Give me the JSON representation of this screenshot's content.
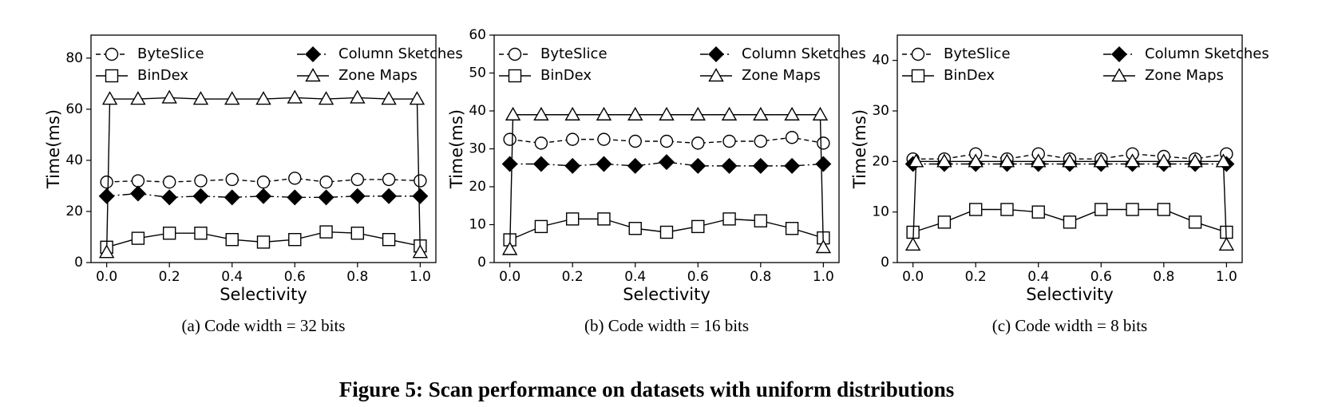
{
  "caption": "Figure 5: Scan performance on datasets with uniform distributions",
  "chart_data": [
    {
      "type": "line",
      "subtitle": "(a)  Code width = 32 bits",
      "x_label": "Selectivity",
      "y_label": "Time(ms)",
      "xlim": [
        -0.05,
        1.05
      ],
      "xticks": [
        {
          "value": 0,
          "label": "0.0"
        },
        0.2,
        0.4,
        0.6,
        0.8,
        {
          "value": 1,
          "label": "1.0"
        }
      ],
      "ylim": [
        0,
        89
      ],
      "yticks": [
        0,
        20,
        40,
        60,
        80
      ],
      "series": [
        {
          "name": "ByteSlice",
          "color": "#000000",
          "marker": "circle",
          "linestyle": "dashed",
          "x": [
            0,
            0.1,
            0.2,
            0.3,
            0.4,
            0.5,
            0.6,
            0.7,
            0.8,
            0.9,
            1
          ],
          "values": [
            31.5,
            32,
            31.5,
            32,
            32.5,
            31.5,
            33,
            31.5,
            32.5,
            32.5,
            32
          ]
        },
        {
          "name": "Column Sketches",
          "color": "#000000",
          "marker": "diamond",
          "linestyle": "dashdot",
          "x": [
            0,
            0.1,
            0.2,
            0.3,
            0.4,
            0.5,
            0.6,
            0.7,
            0.8,
            0.9,
            1
          ],
          "values": [
            26,
            27,
            25.5,
            26,
            25.5,
            26,
            25.5,
            25.5,
            26,
            26,
            26
          ]
        },
        {
          "name": "BinDex",
          "color": "#000000",
          "marker": "square",
          "linestyle": "solid",
          "x": [
            0,
            0.1,
            0.2,
            0.3,
            0.4,
            0.5,
            0.6,
            0.7,
            0.8,
            0.9,
            1
          ],
          "values": [
            6,
            9.5,
            11.5,
            11.5,
            9,
            8,
            9,
            12,
            11.5,
            9,
            6.5
          ]
        },
        {
          "name": "Zone Maps",
          "color": "#000000",
          "marker": "triangle",
          "linestyle": "solid",
          "x": [
            0,
            0.01,
            0.1,
            0.2,
            0.3,
            0.4,
            0.5,
            0.6,
            0.7,
            0.8,
            0.9,
            0.99,
            1
          ],
          "values": [
            4,
            64,
            64,
            64.5,
            64,
            64,
            64,
            64.5,
            64,
            64.5,
            64,
            64,
            4
          ]
        }
      ]
    },
    {
      "type": "line",
      "subtitle": "(b)  Code width = 16 bits",
      "x_label": "Selectivity",
      "y_label": "Time(ms)",
      "xlim": [
        -0.05,
        1.05
      ],
      "xticks": [
        {
          "value": 0,
          "label": "0.0"
        },
        0.2,
        0.4,
        0.6,
        0.8,
        {
          "value": 1,
          "label": "1.0"
        }
      ],
      "ylim": [
        0,
        60
      ],
      "yticks": [
        0,
        10,
        20,
        30,
        40,
        50,
        60
      ],
      "series": [
        {
          "name": "ByteSlice",
          "color": "#000000",
          "marker": "circle",
          "linestyle": "dashed",
          "x": [
            0,
            0.1,
            0.2,
            0.3,
            0.4,
            0.5,
            0.6,
            0.7,
            0.8,
            0.9,
            1
          ],
          "values": [
            32.5,
            31.5,
            32.5,
            32.5,
            32,
            32,
            31.5,
            32,
            32,
            33,
            31.5
          ]
        },
        {
          "name": "Column Sketches",
          "color": "#000000",
          "marker": "diamond",
          "linestyle": "dashdot",
          "x": [
            0,
            0.1,
            0.2,
            0.3,
            0.4,
            0.5,
            0.6,
            0.7,
            0.8,
            0.9,
            1
          ],
          "values": [
            26,
            26,
            25.5,
            26,
            25.5,
            26.5,
            25.5,
            25.5,
            25.5,
            25.5,
            26
          ]
        },
        {
          "name": "BinDex",
          "color": "#000000",
          "marker": "square",
          "linestyle": "solid",
          "x": [
            0,
            0.1,
            0.2,
            0.3,
            0.4,
            0.5,
            0.6,
            0.7,
            0.8,
            0.9,
            1
          ],
          "values": [
            6,
            9.5,
            11.5,
            11.5,
            9,
            8,
            9.5,
            11.5,
            11,
            9,
            6.5
          ]
        },
        {
          "name": "Zone Maps",
          "color": "#000000",
          "marker": "triangle",
          "linestyle": "solid",
          "x": [
            0,
            0.01,
            0.1,
            0.2,
            0.3,
            0.4,
            0.5,
            0.6,
            0.7,
            0.8,
            0.9,
            0.99,
            1
          ],
          "values": [
            3.5,
            39,
            39,
            39,
            39,
            39,
            39,
            39,
            39,
            39,
            39,
            39,
            4
          ]
        }
      ]
    },
    {
      "type": "line",
      "subtitle": "(c)  Code width = 8 bits",
      "x_label": "Selectivity",
      "y_label": "Time(ms)",
      "xlim": [
        -0.05,
        1.05
      ],
      "xticks": [
        {
          "value": 0,
          "label": "0.0"
        },
        0.2,
        0.4,
        0.6,
        0.8,
        {
          "value": 1,
          "label": "1.0"
        }
      ],
      "ylim": [
        0,
        45
      ],
      "yticks": [
        0,
        10,
        20,
        30,
        40
      ],
      "series": [
        {
          "name": "ByteSlice",
          "color": "#000000",
          "marker": "circle",
          "linestyle": "dashed",
          "x": [
            0,
            0.1,
            0.2,
            0.3,
            0.4,
            0.5,
            0.6,
            0.7,
            0.8,
            0.9,
            1
          ],
          "values": [
            20.5,
            20.5,
            21.5,
            20.5,
            21.5,
            20.5,
            20.5,
            21.5,
            21,
            20.5,
            21.5
          ]
        },
        {
          "name": "Column Sketches",
          "color": "#000000",
          "marker": "diamond",
          "linestyle": "dashdot",
          "x": [
            0,
            0.1,
            0.2,
            0.3,
            0.4,
            0.5,
            0.6,
            0.7,
            0.8,
            0.9,
            1
          ],
          "values": [
            19.5,
            19.5,
            19.5,
            19.5,
            19.5,
            19.5,
            19.5,
            19.5,
            19.5,
            19.5,
            19.5
          ]
        },
        {
          "name": "BinDex",
          "color": "#000000",
          "marker": "square",
          "linestyle": "solid",
          "x": [
            0,
            0.1,
            0.2,
            0.3,
            0.4,
            0.5,
            0.6,
            0.7,
            0.8,
            0.9,
            1
          ],
          "values": [
            6,
            8,
            10.5,
            10.5,
            10,
            8,
            10.5,
            10.5,
            10.5,
            8,
            6
          ]
        },
        {
          "name": "Zone Maps",
          "color": "#000000",
          "marker": "triangle",
          "linestyle": "solid",
          "x": [
            0,
            0.01,
            0.1,
            0.2,
            0.3,
            0.4,
            0.5,
            0.6,
            0.7,
            0.8,
            0.9,
            0.99,
            1
          ],
          "values": [
            3.5,
            20,
            20,
            20,
            20,
            20,
            20,
            20,
            20,
            20,
            20,
            20,
            3.5
          ]
        }
      ]
    }
  ]
}
